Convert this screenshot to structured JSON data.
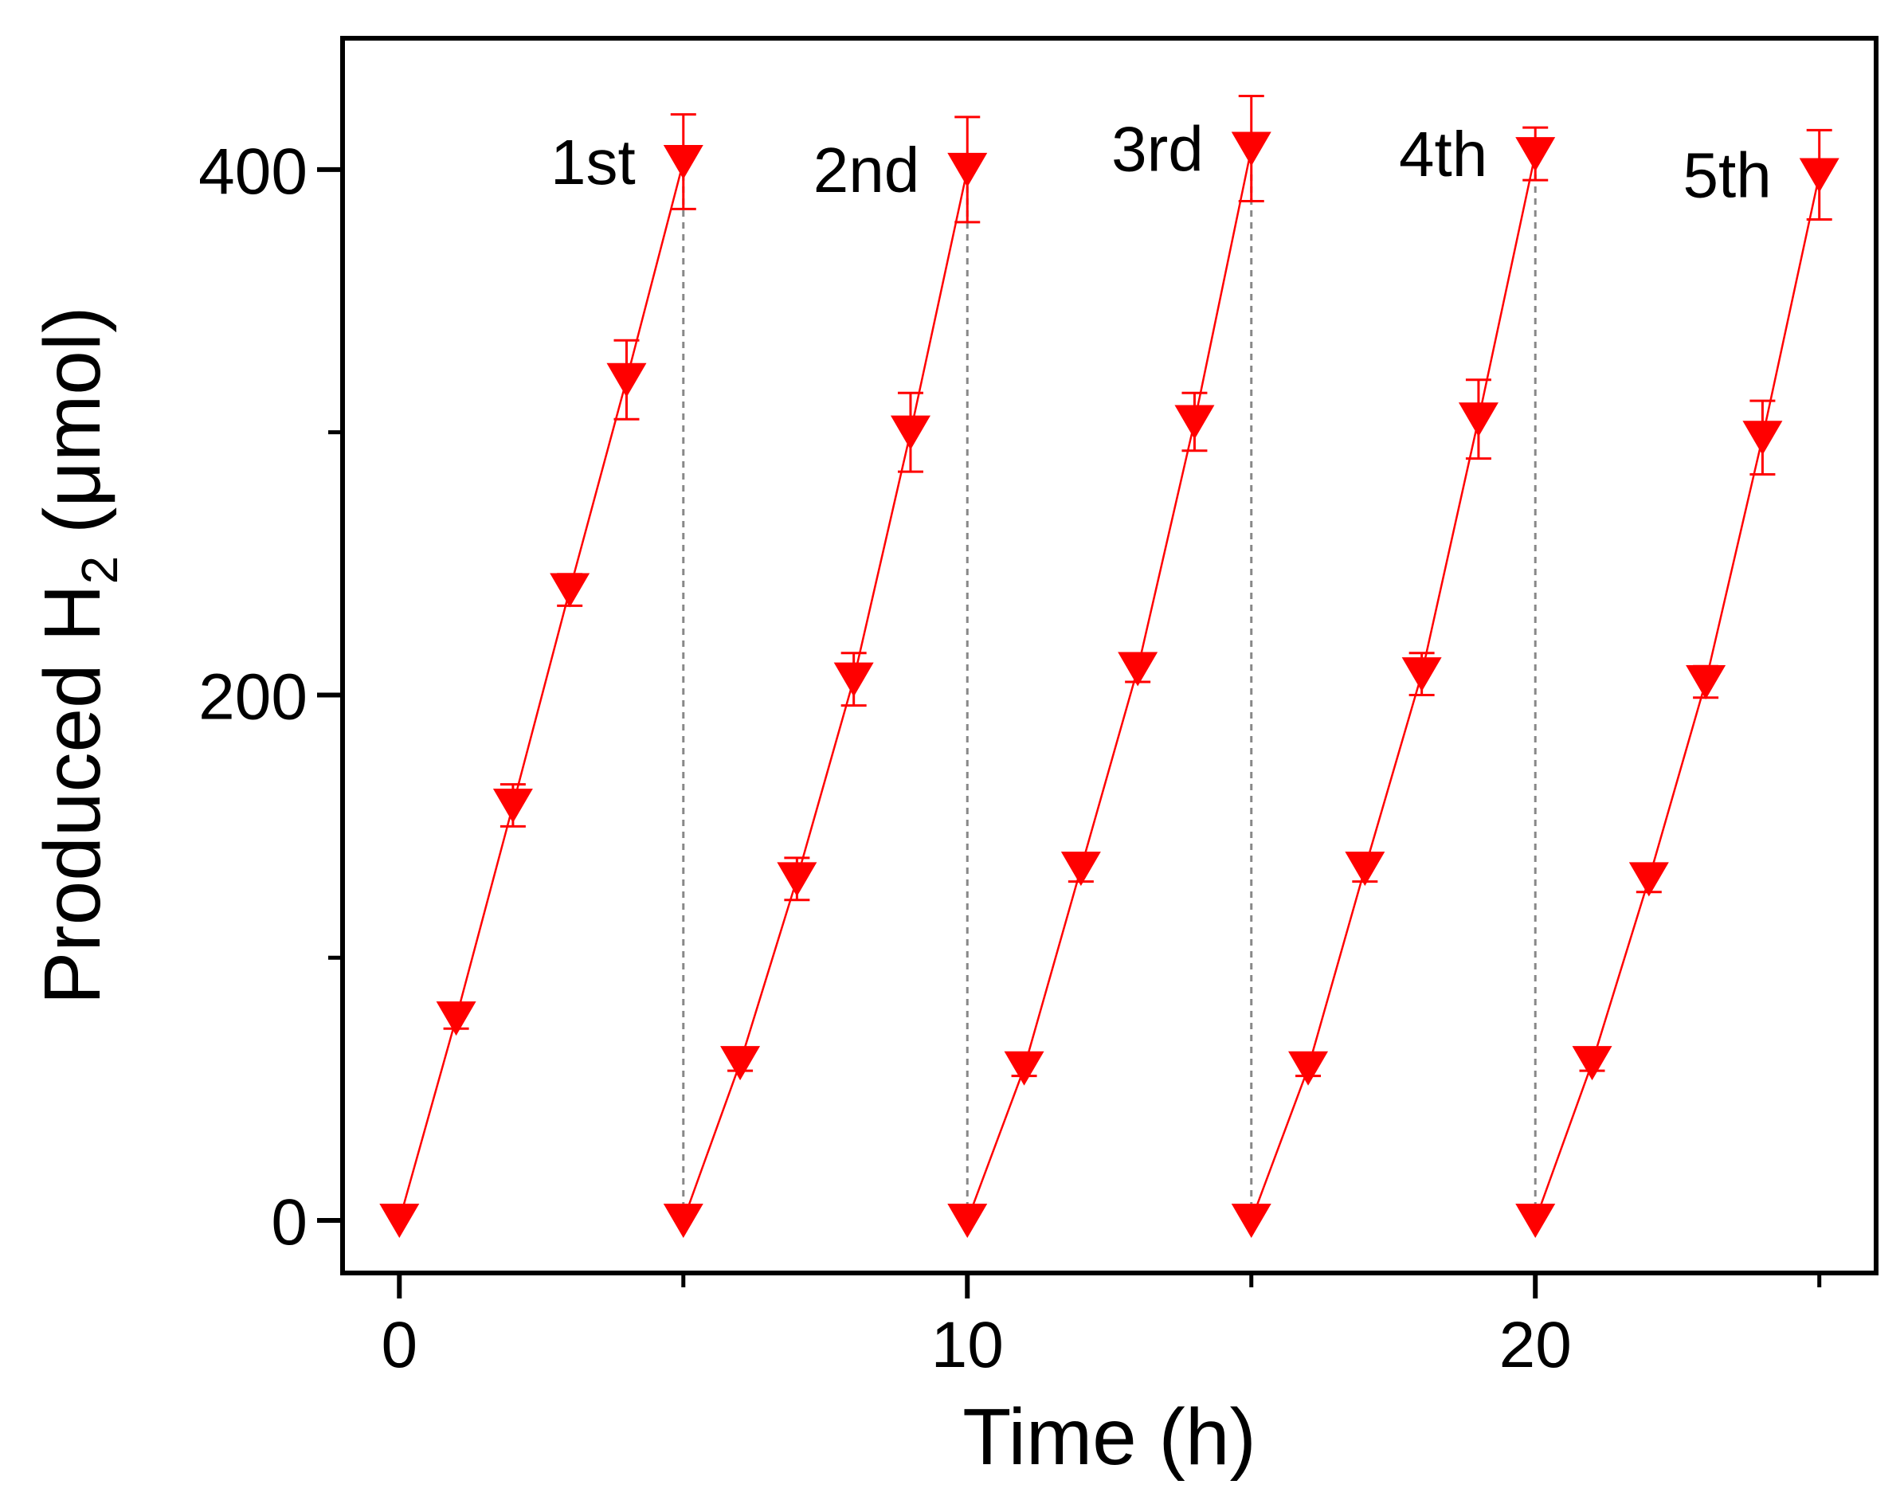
{
  "chart_data": {
    "type": "scatter",
    "xlabel": "Time (h)",
    "ylabel_main": "Produced H",
    "ylabel_sub": "2",
    "ylabel_tail": " (μmol)",
    "xlim": [
      -1,
      26
    ],
    "ylim": [
      -20,
      450
    ],
    "x_ticks": [
      0,
      10,
      20
    ],
    "x_minor_ticks": [
      5,
      15,
      25
    ],
    "y_ticks": [
      0,
      200,
      400
    ],
    "y_minor_ticks": [
      100,
      300
    ],
    "grid": false,
    "colors": {
      "series": "#ff0000",
      "axis": "#000000",
      "divider": "#888888"
    },
    "marker": "triangle-down",
    "cycle_boundaries": [
      5,
      10,
      15,
      20
    ],
    "cycles": [
      {
        "label": "1st",
        "x": [
          0,
          1,
          2,
          3,
          4,
          5
        ],
        "y": [
          0,
          77,
          158,
          240,
          320,
          403
        ],
        "err": [
          0,
          4,
          8,
          6,
          15,
          18
        ]
      },
      {
        "label": "2nd",
        "x": [
          5,
          6,
          7,
          8,
          9,
          10
        ],
        "y": [
          0,
          60,
          130,
          206,
          300,
          400
        ],
        "err": [
          0,
          3,
          8,
          10,
          15,
          20
        ]
      },
      {
        "label": "3rd",
        "x": [
          10,
          11,
          12,
          13,
          14,
          15
        ],
        "y": [
          0,
          58,
          134,
          210,
          304,
          408
        ],
        "err": [
          0,
          3,
          5,
          5,
          11,
          20
        ]
      },
      {
        "label": "4th",
        "x": [
          15,
          16,
          17,
          18,
          19,
          20
        ],
        "y": [
          0,
          58,
          134,
          208,
          305,
          406
        ],
        "err": [
          0,
          3,
          5,
          8,
          15,
          10
        ]
      },
      {
        "label": "5th",
        "x": [
          20,
          21,
          22,
          23,
          24,
          25
        ],
        "y": [
          0,
          60,
          130,
          205,
          298,
          398
        ],
        "err": [
          0,
          3,
          5,
          6,
          14,
          17
        ]
      }
    ]
  }
}
